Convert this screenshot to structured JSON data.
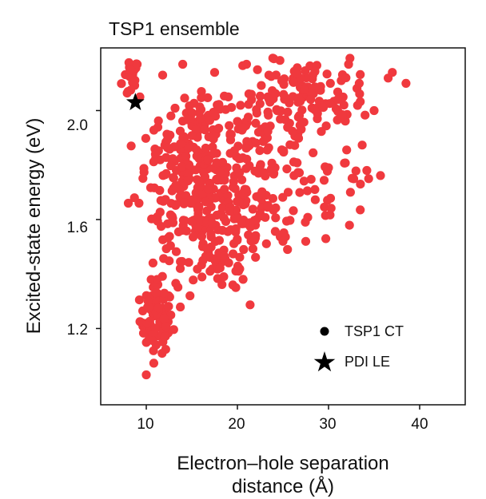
{
  "chart_data": {
    "type": "scatter",
    "title": "TSP1 ensemble",
    "xlabel_lines": [
      "Electron–hole separation",
      "distance (Å)"
    ],
    "ylabel": "Excited-state energy (eV)",
    "xlim": [
      5,
      45
    ],
    "ylim": [
      0.92,
      2.23
    ],
    "xticks": [
      10,
      20,
      30,
      40
    ],
    "xtick_labels": [
      "10",
      "20",
      "30",
      "40"
    ],
    "yticks": [
      1.2,
      1.6,
      2.0
    ],
    "ytick_labels": [
      "1.2",
      "1.6",
      "2.0"
    ],
    "grid": false,
    "legend_position": "lower-right",
    "colors": {
      "ct": "#f0393e",
      "le": "#000000",
      "axis": "#111111"
    },
    "series": [
      {
        "name": "TSP1 CT",
        "marker": "circle",
        "color": "#f0393e",
        "clusters": [
          {
            "cx": 8.3,
            "cy": 2.12,
            "sx": 0.5,
            "sy": 0.04,
            "n": 16
          },
          {
            "cx": 11.1,
            "cy": 1.23,
            "sx": 0.9,
            "sy": 0.06,
            "n": 75
          },
          {
            "cx": 12.3,
            "cy": 1.42,
            "sx": 0.9,
            "sy": 0.08,
            "n": 14
          },
          {
            "cx": 16.0,
            "cy": 1.72,
            "sx": 2.2,
            "sy": 0.13,
            "n": 190
          },
          {
            "cx": 15.5,
            "cy": 1.93,
            "sx": 2.0,
            "sy": 0.06,
            "n": 55
          },
          {
            "cx": 18.0,
            "cy": 1.45,
            "sx": 2.0,
            "sy": 0.06,
            "n": 40
          },
          {
            "cx": 12.0,
            "cy": 1.75,
            "sx": 1.5,
            "sy": 0.1,
            "n": 35
          },
          {
            "cx": 23.0,
            "cy": 1.85,
            "sx": 2.8,
            "sy": 0.14,
            "n": 140
          },
          {
            "cx": 27.5,
            "cy": 2.05,
            "sx": 2.4,
            "sy": 0.07,
            "n": 75
          },
          {
            "cx": 21.0,
            "cy": 1.58,
            "sx": 2.0,
            "sy": 0.07,
            "n": 40
          },
          {
            "cx": 29.5,
            "cy": 1.75,
            "sx": 2.6,
            "sy": 0.12,
            "n": 30
          },
          {
            "cx": 33.5,
            "cy": 2.08,
            "sx": 1.4,
            "sy": 0.05,
            "n": 12
          }
        ],
        "points": [
          [
            10.0,
            1.03
          ],
          [
            9.0,
            2.17
          ],
          [
            11.0,
            1.84
          ],
          [
            9.2,
            1.66
          ],
          [
            8.7,
            1.68
          ],
          [
            14.8,
            1.32
          ],
          [
            19.5,
            1.36
          ],
          [
            24.0,
            2.19
          ],
          [
            21.0,
            2.17
          ],
          [
            22.2,
            2.15
          ],
          [
            29.7,
            1.53
          ],
          [
            28.5,
            1.71
          ],
          [
            32.4,
            1.7
          ],
          [
            37.0,
            2.14
          ],
          [
            38.5,
            2.1
          ],
          [
            32.2,
            2.17
          ],
          [
            30.0,
            1.79
          ],
          [
            34.4,
            1.75
          ],
          [
            34.2,
            1.78
          ],
          [
            35.0,
            2.0
          ],
          [
            33.5,
            1.73
          ],
          [
            27.5,
            1.52
          ],
          [
            25.5,
            1.49
          ],
          [
            25.0,
            1.52
          ],
          [
            17.0,
            1.41
          ],
          [
            18.5,
            1.39
          ],
          [
            20.0,
            1.96
          ],
          [
            17.5,
            2.14
          ],
          [
            19.0,
            2.05
          ],
          [
            11.8,
            2.13
          ],
          [
            14.0,
            2.17
          ],
          [
            8.0,
            2.07
          ],
          [
            8.3,
            2.15
          ],
          [
            9.3,
            2.05
          ],
          [
            12.4,
            1.28
          ],
          [
            12.0,
            1.17
          ],
          [
            11.2,
            1.38
          ],
          [
            10.2,
            1.3
          ],
          [
            30.2,
            2.1
          ],
          [
            31.0,
            2.04
          ]
        ]
      },
      {
        "name": "PDI LE",
        "marker": "star",
        "color": "#000000",
        "points": [
          [
            8.8,
            2.03
          ]
        ]
      }
    ]
  }
}
